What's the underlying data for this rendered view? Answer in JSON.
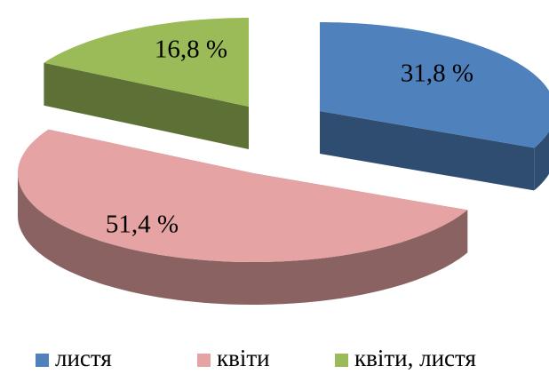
{
  "chart_data": {
    "type": "pie",
    "categories": [
      "листя",
      "квіти",
      "квіти, листя"
    ],
    "values": [
      31.8,
      51.4,
      16.8
    ],
    "value_labels": [
      "31,8 %",
      "51,4 %",
      "16,8 %"
    ],
    "colors": [
      "#4f81bd",
      "#e6a3a3",
      "#9bbb59"
    ],
    "legend": "bottom"
  }
}
